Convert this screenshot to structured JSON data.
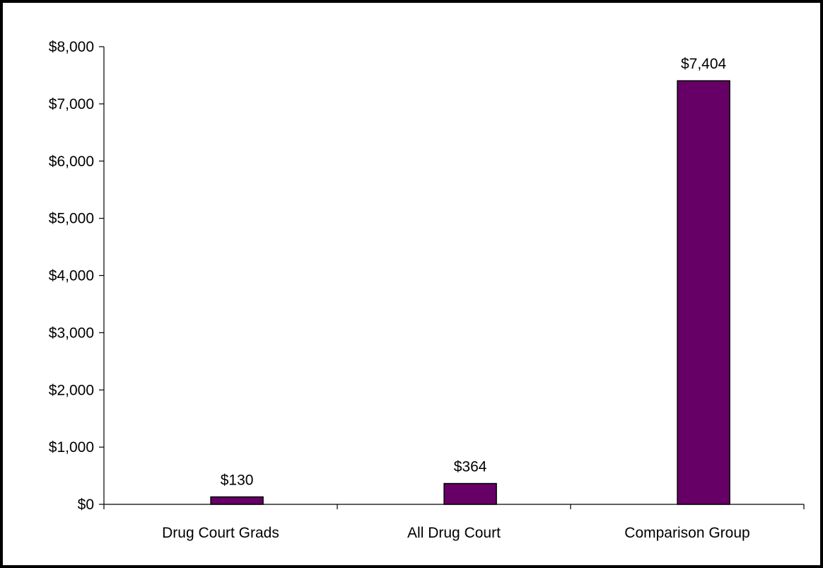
{
  "chart_data": {
    "type": "bar",
    "categories": [
      "Drug Court Grads",
      "All Drug Court",
      "Comparison Group"
    ],
    "values": [
      130,
      364,
      7404
    ],
    "data_labels": [
      "$130",
      "$364",
      "$7,404"
    ],
    "y_ticks": [
      0,
      1000,
      2000,
      3000,
      4000,
      5000,
      6000,
      7000,
      8000
    ],
    "y_tick_labels": [
      "$0",
      "$1,000",
      "$2,000",
      "$3,000",
      "$4,000",
      "$5,000",
      "$6,000",
      "$7,000",
      "$8,000"
    ],
    "ylim": [
      0,
      8000
    ],
    "title": "",
    "xlabel": "",
    "ylabel": "",
    "grid": false,
    "legend": "none",
    "colors": {
      "bar_fill": "#660066",
      "bar_stroke": "#000000",
      "axis": "#000000",
      "border": "#000000"
    }
  }
}
